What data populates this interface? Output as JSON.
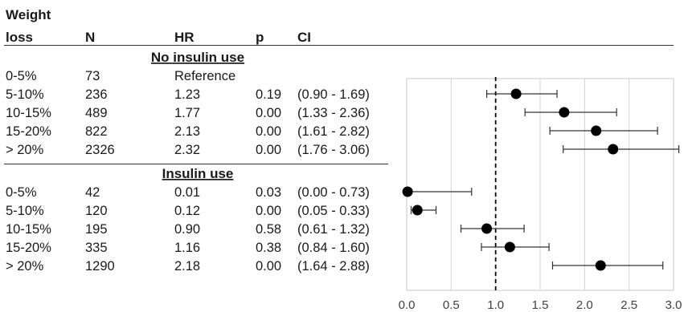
{
  "table": {
    "headers": {
      "weight_loss_line1": "Weight",
      "weight_loss_line2": "loss",
      "n": "N",
      "hr": "HR",
      "p": "p",
      "ci": "CI"
    },
    "sections": [
      {
        "title": "No insulin use",
        "rows": [
          {
            "label": "0-5%",
            "n": "73",
            "hr": "Reference",
            "p": "",
            "ci": ""
          },
          {
            "label": "5-10%",
            "n": "236",
            "hr": "1.23",
            "p": "0.19",
            "ci": "(0.90 - 1.69)"
          },
          {
            "label": "10-15%",
            "n": "489",
            "hr": "1.77",
            "p": "0.00",
            "ci": "(1.33 - 2.36)"
          },
          {
            "label": "15-20%",
            "n": "822",
            "hr": "2.13",
            "p": "0.00",
            "ci": "(1.61 - 2.82)"
          },
          {
            "label": "> 20%",
            "n": "2326",
            "hr": "2.32",
            "p": "0.00",
            "ci": "(1.76 - 3.06)"
          }
        ]
      },
      {
        "title": "Insulin use",
        "rows": [
          {
            "label": "0-5%",
            "n": "42",
            "hr": "0.01",
            "p": "0.03",
            "ci": "(0.00 - 0.73)"
          },
          {
            "label": "5-10%",
            "n": "120",
            "hr": "0.12",
            "p": "0.00",
            "ci": "(0.05 - 0.33)"
          },
          {
            "label": "10-15%",
            "n": "195",
            "hr": "0.90",
            "p": "0.58",
            "ci": "(0.61 - 1.32)"
          },
          {
            "label": "15-20%",
            "n": "335",
            "hr": "1.16",
            "p": "0.38",
            "ci": "(0.84 - 1.60)"
          },
          {
            "label": "> 20%",
            "n": "1290",
            "hr": "2.18",
            "p": "0.00",
            "ci": "(1.64 - 2.88)"
          }
        ]
      }
    ]
  },
  "chart_data": {
    "type": "scatter",
    "subtype": "forest-plot",
    "title": "",
    "xlabel": "",
    "ylabel": "",
    "xlim": [
      0,
      3
    ],
    "x_ticks": [
      "0.0",
      "0.5",
      "1.0",
      "1.5",
      "2.0",
      "2.5",
      "3.0"
    ],
    "reference_line": 1.0,
    "grid": "vertical",
    "marker_color": "#000000",
    "points": [
      {
        "group": "No insulin use",
        "label": "5-10%",
        "hr": 1.23,
        "lo": 0.9,
        "hi": 1.69
      },
      {
        "group": "No insulin use",
        "label": "10-15%",
        "hr": 1.77,
        "lo": 1.33,
        "hi": 2.36
      },
      {
        "group": "No insulin use",
        "label": "15-20%",
        "hr": 2.13,
        "lo": 1.61,
        "hi": 2.82
      },
      {
        "group": "No insulin use",
        "label": "> 20%",
        "hr": 2.32,
        "lo": 1.76,
        "hi": 3.06
      },
      {
        "group": "Insulin use",
        "label": "0-5%",
        "hr": 0.01,
        "lo": 0.0,
        "hi": 0.73
      },
      {
        "group": "Insulin use",
        "label": "5-10%",
        "hr": 0.12,
        "lo": 0.05,
        "hi": 0.33
      },
      {
        "group": "Insulin use",
        "label": "10-15%",
        "hr": 0.9,
        "lo": 0.61,
        "hi": 1.32
      },
      {
        "group": "Insulin use",
        "label": "15-20%",
        "hr": 1.16,
        "lo": 0.84,
        "hi": 1.6
      },
      {
        "group": "Insulin use",
        "label": "> 20%",
        "hr": 2.18,
        "lo": 1.64,
        "hi": 2.88
      }
    ]
  }
}
